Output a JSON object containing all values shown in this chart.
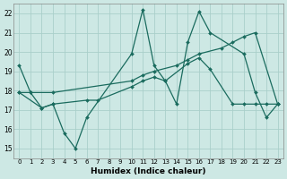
{
  "xlabel": "Humidex (Indice chaleur)",
  "xlim_min": -0.5,
  "xlim_max": 23.5,
  "ylim_min": 14.5,
  "ylim_max": 22.5,
  "yticks": [
    15,
    16,
    17,
    18,
    19,
    20,
    21,
    22
  ],
  "xticks": [
    0,
    1,
    2,
    3,
    4,
    5,
    6,
    7,
    8,
    9,
    10,
    11,
    12,
    13,
    14,
    15,
    16,
    17,
    18,
    19,
    20,
    21,
    22,
    23
  ],
  "bg_color": "#cde8e4",
  "grid_color": "#aacfca",
  "line_color": "#1a6b5e",
  "line1_x": [
    0,
    1,
    2,
    3,
    4,
    5,
    6,
    10,
    11,
    12,
    13,
    14,
    15,
    16,
    17,
    20,
    21,
    22,
    23
  ],
  "line1_y": [
    19.3,
    17.9,
    17.1,
    17.3,
    15.8,
    15.0,
    16.6,
    19.9,
    22.2,
    19.3,
    18.5,
    17.3,
    20.5,
    22.1,
    21.0,
    19.9,
    17.9,
    16.6,
    17.3
  ],
  "line2_x": [
    0,
    2,
    3,
    6,
    7,
    10,
    11,
    12,
    13,
    15,
    16,
    17,
    19,
    20,
    21,
    22,
    23
  ],
  "line2_y": [
    17.9,
    17.1,
    17.3,
    17.5,
    17.5,
    18.2,
    18.5,
    18.7,
    18.5,
    19.4,
    19.7,
    19.1,
    17.3,
    17.3,
    17.3,
    17.3,
    17.3
  ],
  "line3_x": [
    0,
    1,
    3,
    10,
    11,
    12,
    14,
    15,
    16,
    18,
    19,
    20,
    21,
    23
  ],
  "line3_y": [
    17.9,
    17.9,
    17.9,
    18.5,
    18.8,
    19.0,
    19.3,
    19.6,
    19.9,
    20.2,
    20.5,
    20.8,
    21.0,
    17.3
  ]
}
